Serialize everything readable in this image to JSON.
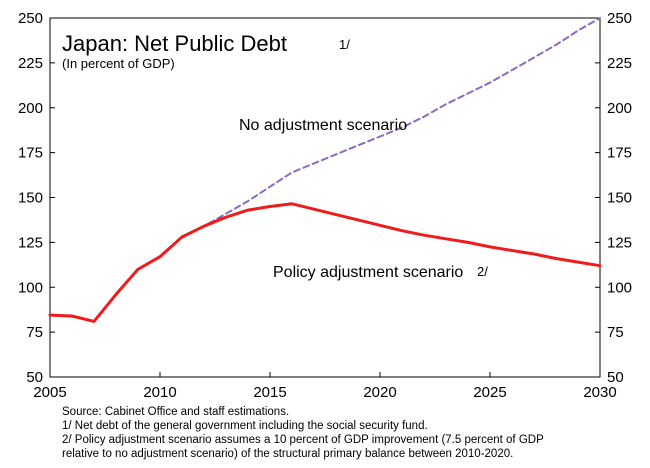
{
  "chart_data": {
    "type": "line",
    "title": "Japan: Net Public Debt",
    "title_note": "1/",
    "subtitle": "(In percent of GDP)",
    "xlim": [
      2005,
      2030
    ],
    "ylim": [
      50,
      250
    ],
    "x_ticks": [
      2005,
      2010,
      2015,
      2020,
      2025,
      2030
    ],
    "y_ticks": [
      50,
      75,
      100,
      125,
      150,
      175,
      200,
      225,
      250
    ],
    "y_axes": "left-and-right",
    "grid": false,
    "legend": "none (direct labels)",
    "series": [
      {
        "name": "Policy adjustment scenario",
        "note": "2/",
        "color": "#ee1c1c",
        "style": "solid",
        "x": [
          2005,
          2006,
          2007,
          2008,
          2009,
          2010,
          2011,
          2012,
          2013,
          2014,
          2015,
          2016,
          2017,
          2018,
          2019,
          2020,
          2021,
          2022,
          2023,
          2024,
          2025,
          2026,
          2027,
          2028,
          2029,
          2030
        ],
        "values": [
          84.5,
          84,
          81,
          96,
          110,
          117,
          128,
          134,
          139,
          143,
          145,
          146.5,
          143.5,
          140.5,
          137.5,
          134.5,
          131.5,
          129,
          127,
          125,
          122.5,
          120.5,
          118.5,
          116,
          114,
          112
        ]
      },
      {
        "name": "No adjustment scenario",
        "color": "#8c6bbf",
        "style": "dashed",
        "x": [
          2011,
          2012,
          2013,
          2014,
          2015,
          2016,
          2017,
          2018,
          2019,
          2020,
          2021,
          2022,
          2023,
          2024,
          2025,
          2026,
          2027,
          2028,
          2029,
          2030
        ],
        "values": [
          128,
          134,
          141,
          148,
          156,
          164,
          169,
          174,
          179,
          184,
          189,
          195,
          202,
          208,
          214,
          221,
          228,
          235,
          243,
          250
        ]
      }
    ]
  },
  "footnotes": [
    "Source: Cabinet Office and staff estimations.",
    "1/ Net debt of the general government including the social security fund.",
    "2/ Policy adjustment scenario assumes a 10 percent of GDP improvement (7.5 percent of GDP",
    "relative to no adjustment scenario) of the structural primary balance between 2010-2020."
  ]
}
